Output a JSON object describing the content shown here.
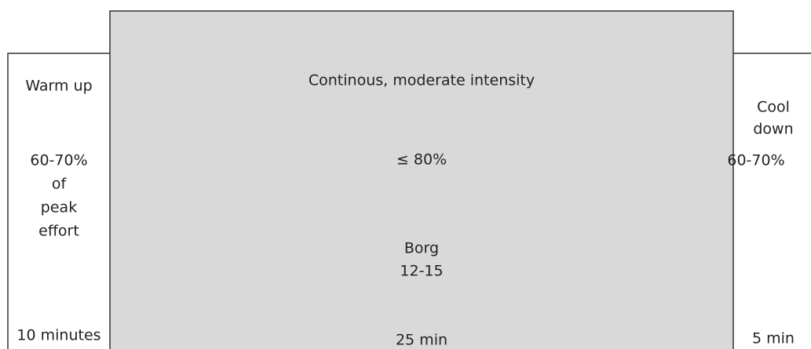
{
  "phases": [
    {
      "label": [
        "Warm up"
      ],
      "intensity": [
        "60-70%",
        "of",
        "peak",
        "effort"
      ],
      "duration": "10 minutes"
    },
    {
      "label": [
        "Continous, moderate intensity"
      ],
      "intensity": [
        "≤ 80%"
      ],
      "borg": [
        "Borg",
        "12-15"
      ],
      "duration": "25 min"
    },
    {
      "label": [
        "Cool",
        "down"
      ],
      "intensity": [
        "60-70%"
      ],
      "duration": "5 min"
    }
  ]
}
